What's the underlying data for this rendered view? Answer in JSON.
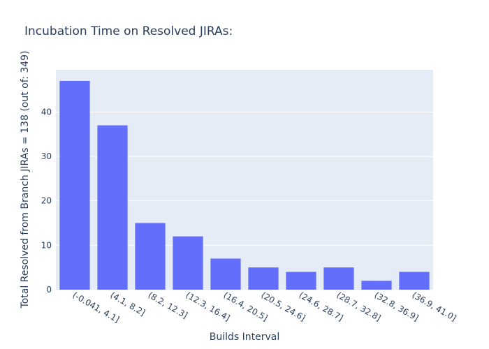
{
  "chart_data": {
    "type": "bar",
    "title": "Incubation Time on Resolved JIRAs:",
    "xlabel": "Builds Interval",
    "ylabel": "Total Resolved from Branch JIRAs = 138 (out of: 349)",
    "categories": [
      "(-0.041, 4.1]",
      "(4.1, 8.2]",
      "(8.2, 12.3]",
      "(12.3, 16.4]",
      "(16.4, 20.5]",
      "(20.5, 24.6]",
      "(24.6, 28.7]",
      "(28.7, 32.8]",
      "(32.8, 36.9]",
      "(36.9, 41.0]"
    ],
    "values": [
      47,
      37,
      15,
      12,
      7,
      5,
      4,
      5,
      2,
      4
    ],
    "ylim": [
      0,
      49.5
    ],
    "yticks": [
      0,
      10,
      20,
      30,
      40
    ],
    "grid": true,
    "colors": {
      "bar": "#636efa",
      "plot_bg": "#e5ecf6",
      "text": "#2a3f5f"
    }
  }
}
